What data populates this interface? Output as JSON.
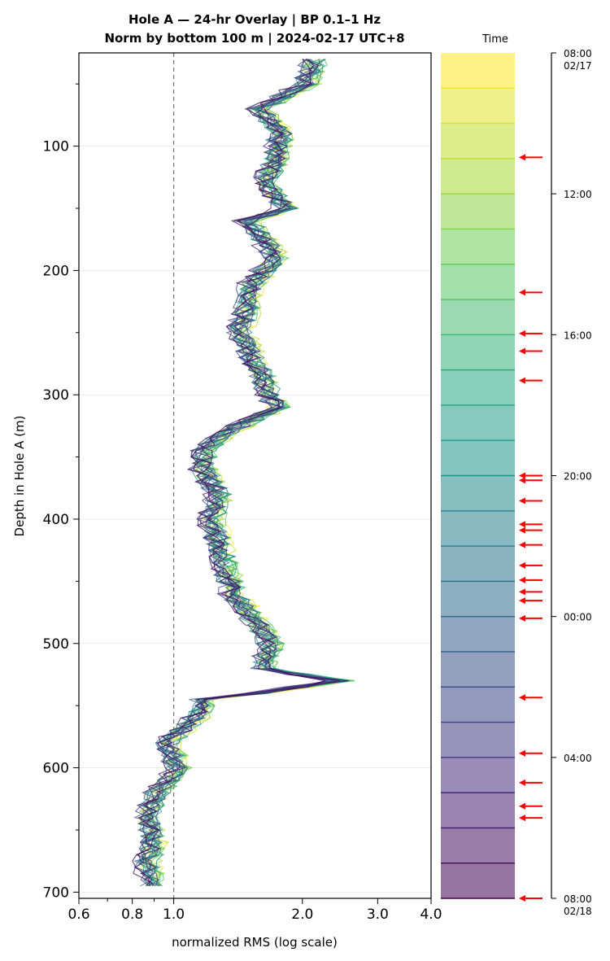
{
  "chart_data": {
    "type": "line",
    "title": "Hole A — 24-hr Overlay  |  BP 0.1–1 Hz",
    "subtitle": "Norm by bottom 100 m  |  2024-02-17 UTC+8",
    "xlabel": "normalized RMS  (log scale)",
    "ylabel": "Depth in Hole A (m)",
    "x_scale": "log",
    "xlim": [
      0.6,
      4.0
    ],
    "ylim": [
      705,
      25
    ],
    "x_ticks": [
      0.6,
      0.8,
      1.0,
      2.0,
      3.0,
      4.0
    ],
    "x_tick_labels": [
      "0.6",
      "0.8",
      "1.0",
      "2.0",
      "3.0",
      "4.0"
    ],
    "y_ticks": [
      100,
      200,
      300,
      400,
      500,
      600,
      700
    ],
    "y_tick_labels": [
      "100",
      "200",
      "300",
      "400",
      "500",
      "600",
      "700"
    ],
    "reference_line_x": 1.0,
    "grid": "horizontal",
    "colormap": "viridis",
    "series_count": 24,
    "profile_depths": [
      30,
      50,
      70,
      90,
      110,
      130,
      150,
      160,
      170,
      190,
      210,
      230,
      250,
      270,
      290,
      310,
      330,
      345,
      360,
      380,
      400,
      420,
      440,
      460,
      480,
      500,
      520,
      530,
      545,
      560,
      580,
      600,
      620,
      640,
      660,
      680,
      695
    ],
    "mean_profile": [
      2.1,
      2.0,
      1.55,
      1.75,
      1.7,
      1.6,
      1.8,
      1.45,
      1.55,
      1.7,
      1.5,
      1.45,
      1.4,
      1.5,
      1.6,
      1.7,
      1.3,
      1.15,
      1.15,
      1.25,
      1.2,
      1.25,
      1.3,
      1.35,
      1.5,
      1.65,
      1.6,
      2.3,
      1.15,
      1.1,
      0.95,
      1.0,
      0.9,
      0.85,
      0.88,
      0.85,
      0.88
    ],
    "colorbar": {
      "label": "Time",
      "tick_labels": [
        "08:00\n02/17",
        "12:00",
        "16:00",
        "20:00",
        "00:00",
        "04:00",
        "08:00\n02/18"
      ],
      "bands": 24,
      "start_color": "#fde725",
      "end_color": "#440154",
      "marker_color": "#ff0000",
      "marker_times": [
        "10:58",
        "14:48",
        "15:58",
        "16:28",
        "17:18",
        "20:00",
        "20:08",
        "20:43",
        "21:23",
        "21:33",
        "21:58",
        "22:33",
        "22:58",
        "23:18",
        "23:33",
        "00:03",
        "02:18",
        "03:53",
        "04:43",
        "05:23",
        "05:43",
        "08:00"
      ]
    }
  }
}
